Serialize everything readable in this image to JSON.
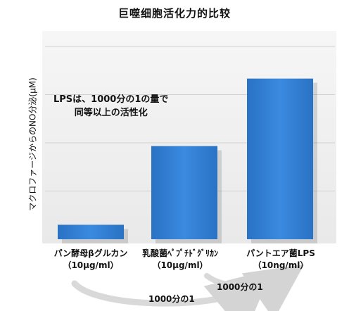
{
  "title": "巨噬细胞活化力的比较",
  "chart_data": {
    "type": "bar",
    "ylabel": "マクロファージからのNO分泌(μM)",
    "categories": [
      "パン酵母βグルカン\n（10μg/ml）",
      "乳酸菌ﾍﾟﾌﾟﾁﾄﾞｸﾞﾘｶﾝ\n（10μg/ml）",
      "パントエア菌LPS\n（10ng/ml）"
    ],
    "values": [
      9,
      58,
      100
    ],
    "ylim": [
      0,
      120
    ],
    "grid": true,
    "bar_color": "#2f7fd6",
    "annotation": "LPSは、1000分の1の量で\n同等以上の活性化"
  },
  "comparisons": [
    {
      "label": "1000分の1"
    },
    {
      "label": "1000分の1"
    }
  ]
}
